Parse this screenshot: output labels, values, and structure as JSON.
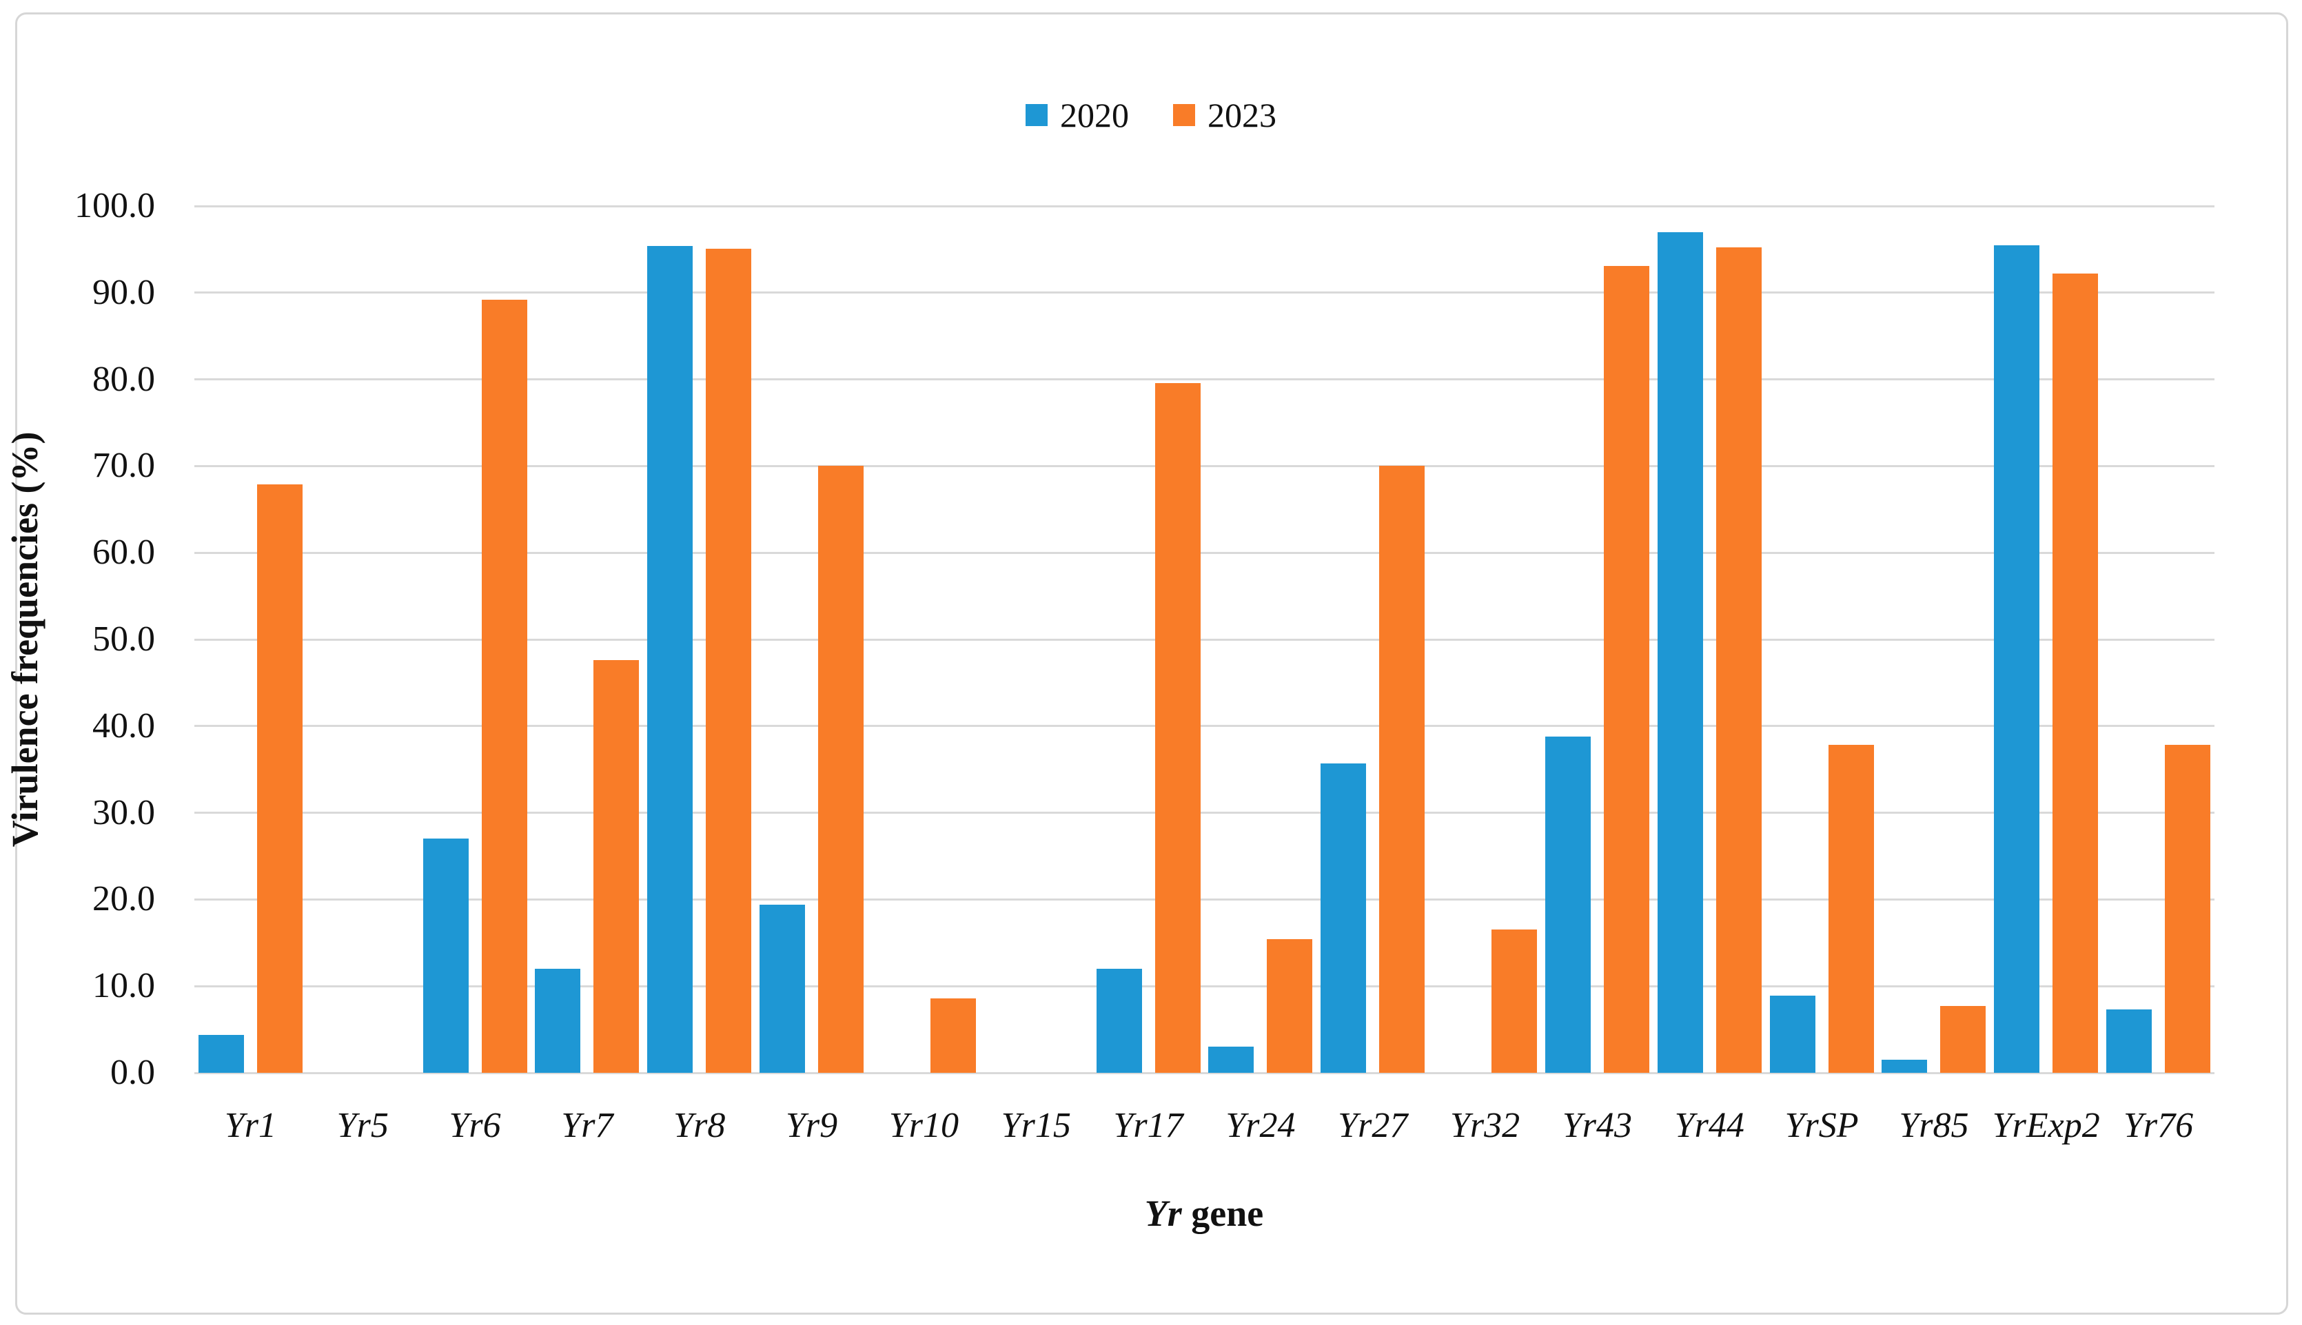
{
  "figure": {
    "border_color": "#d6d6d6",
    "background": "#ffffff"
  },
  "legend": {
    "items": [
      {
        "label": "2020",
        "color": "#1E97D4"
      },
      {
        "label": "2023",
        "color": "#F97C28"
      }
    ]
  },
  "axes": {
    "ylabel": "Virulence frequencies (%)",
    "xlabel_italic": "Yr",
    "xlabel_rest": " gene",
    "ytick_labels": [
      "0.0",
      "10.0",
      "20.0",
      "30.0",
      "40.0",
      "50.0",
      "60.0",
      "70.0",
      "80.0",
      "90.0",
      "100.0"
    ]
  },
  "chart_data": {
    "type": "bar",
    "title": "",
    "xlabel": "Yr gene",
    "ylabel": "Virulence frequencies (%)",
    "ylim": [
      0,
      100
    ],
    "ytick_step": 10,
    "grid": "horizontal",
    "gridline_color": "#d9d9d9",
    "legend_position": "top-center",
    "categories": [
      "Yr1",
      "Yr5",
      "Yr6",
      "Yr7",
      "Yr8",
      "Yr9",
      "Yr10",
      "Yr15",
      "Yr17",
      "Yr24",
      "Yr27",
      "Yr32",
      "Yr43",
      "Yr44",
      "YrSP",
      "Yr85",
      "YrExp2",
      "Yr76"
    ],
    "series": [
      {
        "name": "2020",
        "color": "#1E97D4",
        "values": [
          4.4,
          0,
          27.0,
          12.0,
          95.4,
          19.4,
          0,
          0,
          12.0,
          3.0,
          35.7,
          0,
          38.8,
          97.0,
          8.9,
          1.5,
          95.5,
          7.3
        ]
      },
      {
        "name": "2023",
        "color": "#F97C28",
        "values": [
          67.9,
          0,
          89.2,
          47.6,
          95.1,
          70.0,
          8.6,
          0,
          79.6,
          15.4,
          70.0,
          16.5,
          93.1,
          95.2,
          37.8,
          7.7,
          92.2,
          37.8
        ]
      }
    ]
  }
}
